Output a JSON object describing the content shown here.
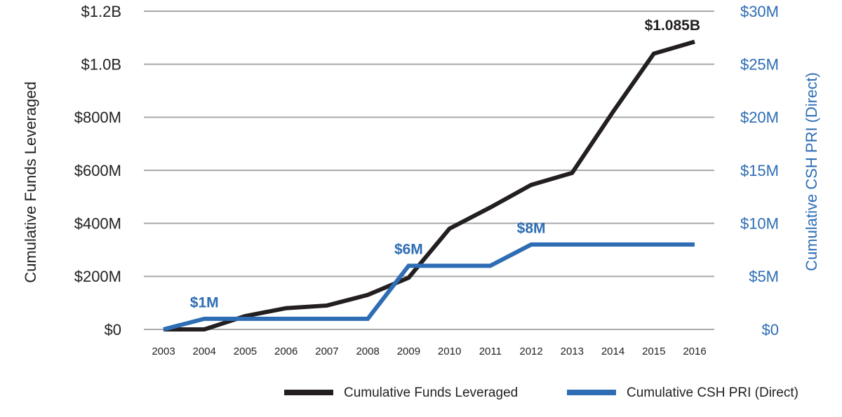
{
  "chart_data": {
    "type": "line",
    "categories": [
      "2003",
      "2004",
      "2005",
      "2006",
      "2007",
      "2008",
      "2009",
      "2010",
      "2011",
      "2012",
      "2013",
      "2014",
      "2015",
      "2016"
    ],
    "ylabel": "Cumulative Funds Leveraged",
    "y2label": "Cumulative CSH PRI (Direct)",
    "ylim": [
      0,
      1200000000
    ],
    "yticks": [
      {
        "value": 0,
        "label": "$0"
      },
      {
        "value": 200000000,
        "label": "$200M"
      },
      {
        "value": 400000000,
        "label": "$400M"
      },
      {
        "value": 600000000,
        "label": "$600M"
      },
      {
        "value": 800000000,
        "label": "$800M"
      },
      {
        "value": 1000000000,
        "label": "$1.0B"
      },
      {
        "value": 1200000000,
        "label": "$1.2B"
      }
    ],
    "y2lim": [
      0,
      30000000
    ],
    "y2ticks": [
      {
        "value": 0,
        "label": "$0"
      },
      {
        "value": 5000000,
        "label": "$5M"
      },
      {
        "value": 10000000,
        "label": "$10M"
      },
      {
        "value": 15000000,
        "label": "$15M"
      },
      {
        "value": 20000000,
        "label": "$20M"
      },
      {
        "value": 25000000,
        "label": "$25M"
      },
      {
        "value": 30000000,
        "label": "$30M"
      }
    ],
    "grid": true,
    "legend": "bottom-right",
    "series": [
      {
        "name": "Cumulative Funds Leveraged",
        "color": "#231f20",
        "values": [
          0,
          0,
          50000000,
          80000000,
          90000000,
          130000000,
          195000000,
          380000000,
          460000000,
          545000000,
          590000000,
          820000000,
          1040000000,
          1085000000
        ],
        "value_labels": [
          null,
          null,
          null,
          null,
          null,
          null,
          null,
          null,
          null,
          null,
          null,
          null,
          null,
          "$1.085B"
        ]
      },
      {
        "name": "Cumulative CSH PRI (Direct)",
        "color": "#2e6db4",
        "axis": "y2",
        "values": [
          0,
          1000000,
          1000000,
          1000000,
          1000000,
          1000000,
          6000000,
          6000000,
          6000000,
          8000000,
          8000000,
          8000000,
          8000000,
          8000000
        ],
        "value_labels": [
          null,
          "$1M",
          null,
          null,
          null,
          null,
          "$6M",
          null,
          null,
          "$8M",
          null,
          null,
          null,
          null
        ]
      }
    ]
  }
}
